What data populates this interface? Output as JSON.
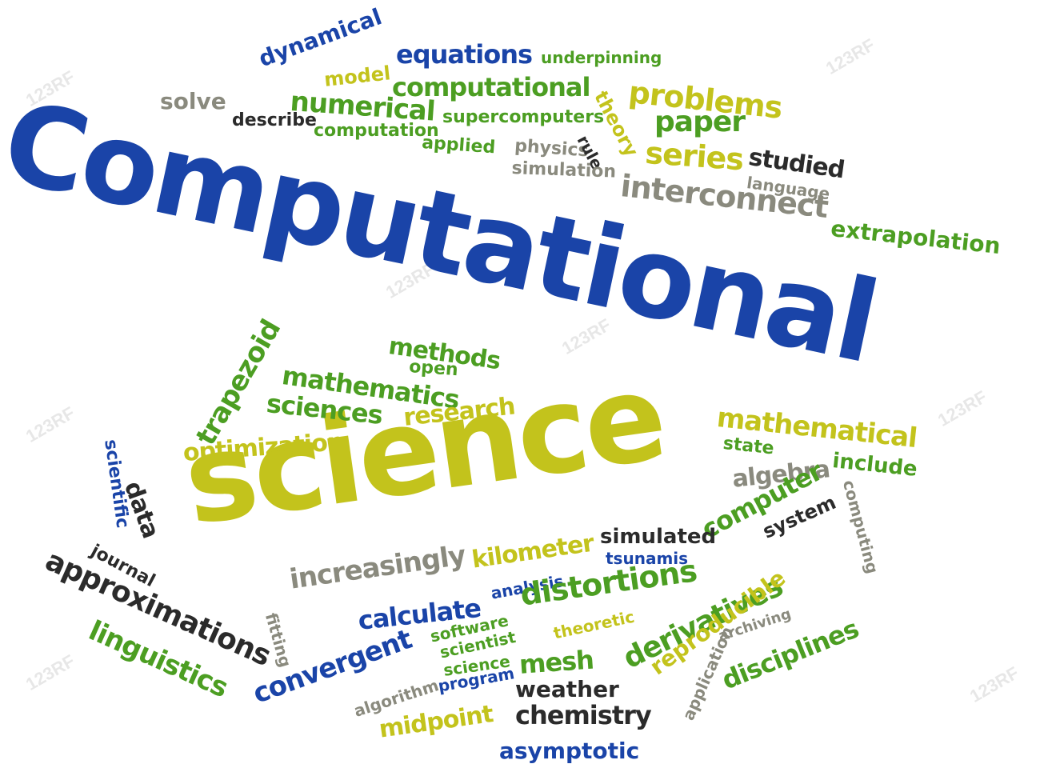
{
  "colors": {
    "blue": "#1a44a8",
    "green": "#4c9e22",
    "yellow": "#c3c31c",
    "gray": "#8a8a7e",
    "dark": "#2b2b2b",
    "watermark": "#bdbdbd"
  },
  "watermark": {
    "text": "123RF"
  },
  "words": [
    {
      "id": "computational-title",
      "text": "Computational"
    },
    {
      "id": "science-title",
      "text": "science"
    },
    {
      "id": "dynamical",
      "text": "dynamical"
    },
    {
      "id": "equations",
      "text": "equations"
    },
    {
      "id": "underpinning",
      "text": "underpinning"
    },
    {
      "id": "model",
      "text": "model"
    },
    {
      "id": "computational-small",
      "text": "computational"
    },
    {
      "id": "problems",
      "text": "problems"
    },
    {
      "id": "theory",
      "text": "theory"
    },
    {
      "id": "solve",
      "text": "solve"
    },
    {
      "id": "describe",
      "text": "describe"
    },
    {
      "id": "numerical",
      "text": "numerical"
    },
    {
      "id": "supercomputers",
      "text": "supercomputers"
    },
    {
      "id": "paper",
      "text": "paper"
    },
    {
      "id": "computation",
      "text": "computation"
    },
    {
      "id": "applied",
      "text": "applied"
    },
    {
      "id": "physics",
      "text": "physics"
    },
    {
      "id": "rule",
      "text": "rule"
    },
    {
      "id": "series",
      "text": "series"
    },
    {
      "id": "studied",
      "text": "studied"
    },
    {
      "id": "simulation",
      "text": "simulation"
    },
    {
      "id": "interconnect",
      "text": "interconnect"
    },
    {
      "id": "language",
      "text": "language"
    },
    {
      "id": "extrapolation",
      "text": "extrapolation"
    },
    {
      "id": "trapezoid",
      "text": "trapezoid"
    },
    {
      "id": "methods",
      "text": "methods"
    },
    {
      "id": "open",
      "text": "open"
    },
    {
      "id": "mathematics",
      "text": "mathematics"
    },
    {
      "id": "sciences",
      "text": "sciences"
    },
    {
      "id": "research",
      "text": "research"
    },
    {
      "id": "mathematical",
      "text": "mathematical"
    },
    {
      "id": "state",
      "text": "state"
    },
    {
      "id": "scientific",
      "text": "scientific"
    },
    {
      "id": "optimization",
      "text": "optimization"
    },
    {
      "id": "algebra",
      "text": "algebra"
    },
    {
      "id": "include",
      "text": "include"
    },
    {
      "id": "data",
      "text": "data"
    },
    {
      "id": "computing",
      "text": "computing"
    },
    {
      "id": "journal",
      "text": "journal"
    },
    {
      "id": "computer",
      "text": "computer"
    },
    {
      "id": "system",
      "text": "system"
    },
    {
      "id": "simulated",
      "text": "simulated"
    },
    {
      "id": "approximations",
      "text": "approximations"
    },
    {
      "id": "kilometer",
      "text": "kilometer"
    },
    {
      "id": "tsunamis",
      "text": "tsunamis"
    },
    {
      "id": "increasingly",
      "text": "increasingly"
    },
    {
      "id": "analysis",
      "text": "analysis"
    },
    {
      "id": "fitting",
      "text": "fitting"
    },
    {
      "id": "distortions",
      "text": "distortions"
    },
    {
      "id": "derivatives",
      "text": "derivatives"
    },
    {
      "id": "linguistics",
      "text": "linguistics"
    },
    {
      "id": "calculate",
      "text": "calculate"
    },
    {
      "id": "theoretic",
      "text": "theoretic"
    },
    {
      "id": "reproducible",
      "text": "reproducible"
    },
    {
      "id": "software",
      "text": "software"
    },
    {
      "id": "archiving",
      "text": "archiving"
    },
    {
      "id": "scientist",
      "text": "scientist"
    },
    {
      "id": "convergent",
      "text": "convergent"
    },
    {
      "id": "mesh",
      "text": "mesh"
    },
    {
      "id": "disciplines",
      "text": "disciplines"
    },
    {
      "id": "science-small",
      "text": "science"
    },
    {
      "id": "program",
      "text": "program"
    },
    {
      "id": "algorithm",
      "text": "algorithm"
    },
    {
      "id": "weather",
      "text": "weather"
    },
    {
      "id": "application",
      "text": "application"
    },
    {
      "id": "midpoint",
      "text": "midpoint"
    },
    {
      "id": "chemistry",
      "text": "chemistry"
    },
    {
      "id": "asymptotic",
      "text": "asymptotic"
    }
  ]
}
